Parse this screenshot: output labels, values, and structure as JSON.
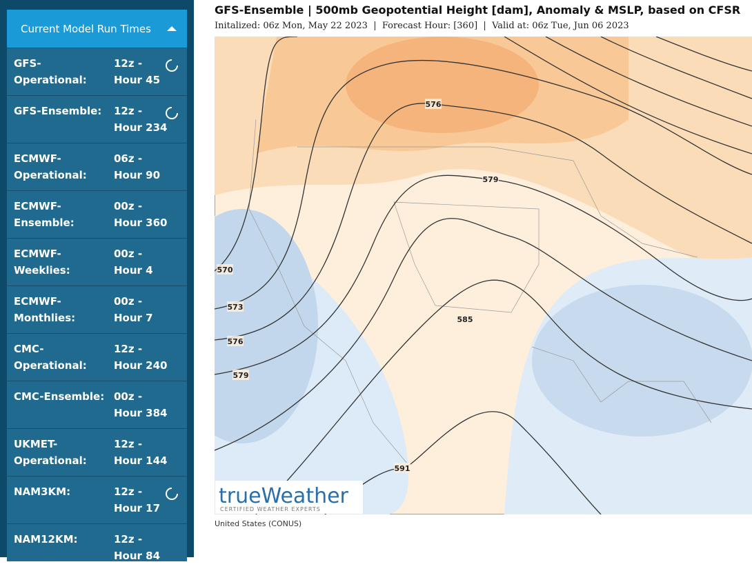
{
  "sidebar": {
    "title": "Current Model Run Times",
    "models": [
      {
        "name": "GFS-Operational:",
        "run": "12z -",
        "hour": "Hour 45",
        "loading": true
      },
      {
        "name": "GFS-Ensemble:",
        "run": "12z -",
        "hour": "Hour 234",
        "loading": true
      },
      {
        "name": "ECMWF-Operational:",
        "run": "06z -",
        "hour": "Hour 90",
        "loading": false
      },
      {
        "name": "ECMWF-Ensemble:",
        "run": "00z -",
        "hour": "Hour 360",
        "loading": false
      },
      {
        "name": "ECMWF-Weeklies:",
        "run": "00z -",
        "hour": "Hour 4",
        "loading": false
      },
      {
        "name": "ECMWF-Monthlies:",
        "run": "00z -",
        "hour": "Hour 7",
        "loading": false
      },
      {
        "name": "CMC-Operational:",
        "run": "12z -",
        "hour": "Hour 240",
        "loading": false
      },
      {
        "name": "CMC-Ensemble:",
        "run": "00z -",
        "hour": "Hour 384",
        "loading": false
      },
      {
        "name": "UKMET-Operational:",
        "run": "12z -",
        "hour": "Hour 144",
        "loading": false
      },
      {
        "name": "NAM3KM:",
        "run": "12z -",
        "hour": "Hour 17",
        "loading": true
      },
      {
        "name": "NAM12KM:",
        "run": "12z -",
        "hour": "Hour 84",
        "loading": false
      }
    ]
  },
  "map": {
    "title": "GFS-Ensemble | 500mb Geopotential Height [dam], Anomaly & MSLP, based on CFSR",
    "subtitle": "Initalized: 06z Mon, May 22 2023  |  Forecast Hour: [360]  |  Valid at: 06z Tue, Jun 06 2023",
    "contour_labels": [
      576,
      579,
      570,
      573,
      576,
      579,
      585,
      591
    ],
    "logo": "trueWeather",
    "logo_tagline": "CERTIFIED WEATHER EXPERTS",
    "caption": "United States (CONUS)"
  }
}
